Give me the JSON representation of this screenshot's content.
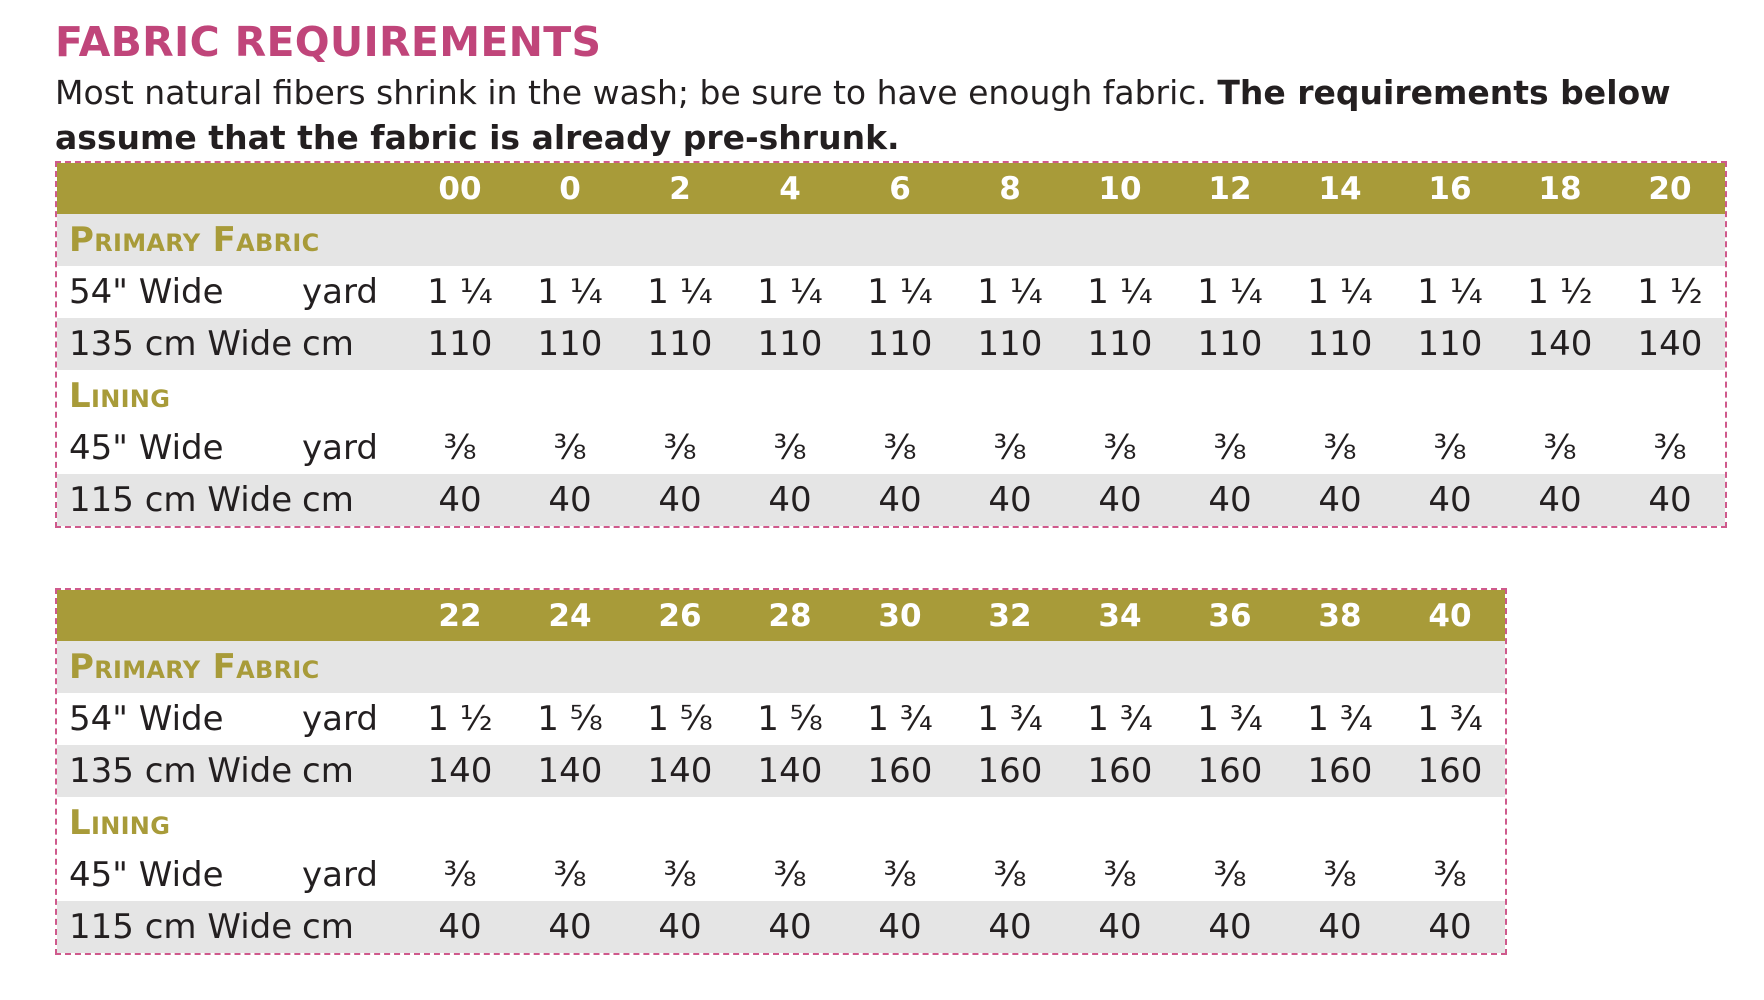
{
  "title": "FABRIC REQUIREMENTS",
  "intro_normal": "Most natural fibers shrink in the wash; be sure to have enough fabric. ",
  "intro_bold": "The requirements below assume that the fabric is already pre-shrunk.",
  "colors": {
    "title": "#c0457a",
    "header": "#a89b39",
    "section": "#a89b39",
    "stripe": "#e5e5e5",
    "dash": "#cf5a8c"
  },
  "tables": [
    {
      "sizes": [
        "00",
        "0",
        "2",
        "4",
        "6",
        "8",
        "10",
        "12",
        "14",
        "16",
        "18",
        "20"
      ],
      "sections": [
        {
          "label": "Primary Fabric",
          "rows": [
            {
              "label": "54\" Wide",
              "unit": "yard",
              "values": [
                "1 ¼",
                "1 ¼",
                "1 ¼",
                "1 ¼",
                "1 ¼",
                "1 ¼",
                "1 ¼",
                "1 ¼",
                "1 ¼",
                "1 ¼",
                "1 ½",
                "1 ½"
              ]
            },
            {
              "label": "135 cm Wide",
              "unit": "cm",
              "values": [
                "110",
                "110",
                "110",
                "110",
                "110",
                "110",
                "110",
                "110",
                "110",
                "110",
                "140",
                "140"
              ]
            }
          ]
        },
        {
          "label": "Lining",
          "rows": [
            {
              "label": "45\" Wide",
              "unit": "yard",
              "values": [
                "⅜",
                "⅜",
                "⅜",
                "⅜",
                "⅜",
                "⅜",
                "⅜",
                "⅜",
                "⅜",
                "⅜",
                "⅜",
                "⅜"
              ]
            },
            {
              "label": "115 cm Wide",
              "unit": "cm",
              "values": [
                "40",
                "40",
                "40",
                "40",
                "40",
                "40",
                "40",
                "40",
                "40",
                "40",
                "40",
                "40"
              ]
            }
          ]
        }
      ]
    },
    {
      "sizes": [
        "22",
        "24",
        "26",
        "28",
        "30",
        "32",
        "34",
        "36",
        "38",
        "40"
      ],
      "sections": [
        {
          "label": "Primary Fabric",
          "rows": [
            {
              "label": "54\" Wide",
              "unit": "yard",
              "values": [
                "1 ½",
                "1 ⅝",
                "1 ⅝",
                "1 ⅝",
                "1 ¾",
                "1 ¾",
                "1 ¾",
                "1 ¾",
                "1 ¾",
                "1 ¾"
              ]
            },
            {
              "label": "135 cm Wide",
              "unit": "cm",
              "values": [
                "140",
                "140",
                "140",
                "140",
                "160",
                "160",
                "160",
                "160",
                "160",
                "160"
              ]
            }
          ]
        },
        {
          "label": "Lining",
          "rows": [
            {
              "label": "45\" Wide",
              "unit": "yard",
              "values": [
                "⅜",
                "⅜",
                "⅜",
                "⅜",
                "⅜",
                "⅜",
                "⅜",
                "⅜",
                "⅜",
                "⅜"
              ]
            },
            {
              "label": "115 cm Wide",
              "unit": "cm",
              "values": [
                "40",
                "40",
                "40",
                "40",
                "40",
                "40",
                "40",
                "40",
                "40",
                "40"
              ]
            }
          ]
        }
      ]
    }
  ]
}
